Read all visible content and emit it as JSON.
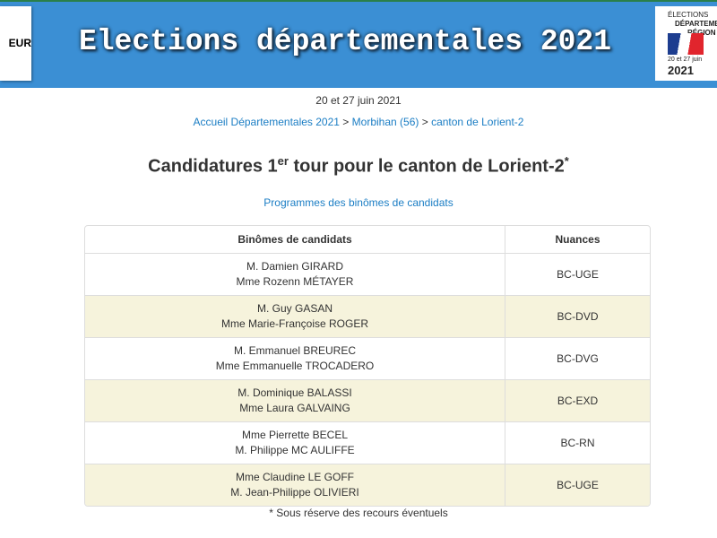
{
  "header": {
    "ministry": "EUR",
    "title": "Elections départementales 2021",
    "logo": {
      "line1": "ÉLECTIONS",
      "line2": "DÉPARTEME",
      "line3": "RÉGION",
      "dates": "20 et 27 juin",
      "year": "2021"
    }
  },
  "date": "20 et 27 juin 2021",
  "breadcrumb": {
    "items": [
      "Accueil Départementales 2021",
      "Morbihan (56)",
      "canton de Lorient-2"
    ],
    "separator": ">"
  },
  "heading": {
    "before": "Candidatures 1",
    "sup": "er",
    "after": " tour pour le canton de Lorient-2",
    "mark": "*"
  },
  "programs_link": "Programmes des binômes de candidats",
  "table": {
    "headers": [
      "Binômes de candidats",
      "Nuances"
    ],
    "rows": [
      {
        "names": [
          "M. Damien GIRARD",
          "Mme Rozenn MÉTAYER"
        ],
        "nuance": "BC-UGE"
      },
      {
        "names": [
          "M. Guy GASAN",
          "Mme Marie-Françoise ROGER"
        ],
        "nuance": "BC-DVD"
      },
      {
        "names": [
          "M. Emmanuel BREUREC",
          "Mme Emmanuelle TROCADERO"
        ],
        "nuance": "BC-DVG"
      },
      {
        "names": [
          "M. Dominique BALASSI",
          "Mme Laura GALVAING"
        ],
        "nuance": "BC-EXD"
      },
      {
        "names": [
          "Mme Pierrette BECEL",
          "M. Philippe MC AULIFFE"
        ],
        "nuance": "BC-RN"
      },
      {
        "names": [
          "Mme Claudine LE GOFF",
          "M. Jean-Philippe OLIVIERI"
        ],
        "nuance": "BC-UGE"
      }
    ]
  },
  "footnote": "* Sous réserve des recours éventuels"
}
